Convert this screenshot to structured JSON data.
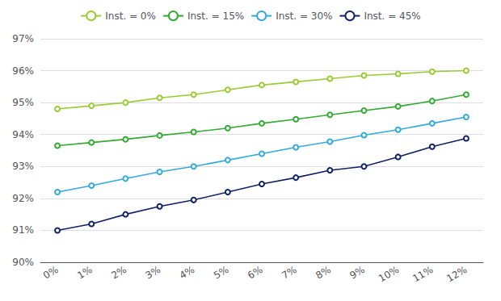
{
  "chart_data": {
    "type": "line",
    "categories": [
      "0%",
      "1%",
      "2%",
      "3%",
      "4%",
      "5%",
      "6%",
      "7%",
      "8%",
      "9%",
      "10%",
      "11%",
      "12%"
    ],
    "series": [
      {
        "name": "Inst. = 0%",
        "color": "#99cc33",
        "values": [
          94.8,
          94.9,
          95.0,
          95.15,
          95.25,
          95.4,
          95.55,
          95.65,
          95.75,
          95.85,
          95.9,
          95.97,
          96.0
        ]
      },
      {
        "name": "Inst. = 15%",
        "color": "#33aa33",
        "values": [
          93.65,
          93.75,
          93.85,
          93.97,
          94.08,
          94.2,
          94.35,
          94.48,
          94.62,
          94.75,
          94.88,
          95.05,
          95.25
        ]
      },
      {
        "name": "Inst. = 30%",
        "color": "#33aadd",
        "values": [
          92.2,
          92.4,
          92.62,
          92.83,
          93.0,
          93.2,
          93.4,
          93.6,
          93.78,
          93.98,
          94.15,
          94.35,
          94.55
        ]
      },
      {
        "name": "Inst. = 45%",
        "color": "#112266",
        "values": [
          91.0,
          91.2,
          91.5,
          91.75,
          91.95,
          92.2,
          92.45,
          92.65,
          92.88,
          93.0,
          93.3,
          93.62,
          93.88
        ]
      }
    ],
    "ylim": [
      90.0,
      97.0
    ],
    "yticks": [
      {
        "value": 90,
        "label": "90%"
      },
      {
        "value": 91,
        "label": "91%"
      },
      {
        "value": 92,
        "label": "92%"
      },
      {
        "value": 93,
        "label": "93%"
      },
      {
        "value": 94,
        "label": "94%"
      },
      {
        "value": 95,
        "label": "95%"
      },
      {
        "value": 96,
        "label": "96%"
      },
      {
        "value": 97,
        "label": "97%"
      }
    ],
    "grid": true,
    "legend": "top",
    "marker": "circle"
  }
}
